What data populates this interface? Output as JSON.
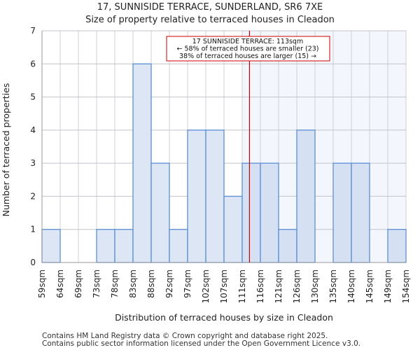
{
  "chart_data": {
    "type": "bar",
    "title": "17, SUNNISIDE TERRACE, SUNDERLAND, SR6 7XE",
    "subtitle": "Size of property relative to terraced houses in Cleadon",
    "xlabel": "Distribution of terraced houses by size in Cleadon",
    "ylabel": "Number of terraced properties",
    "bin_edges": [
      "59sqm",
      "64sqm",
      "69sqm",
      "73sqm",
      "78sqm",
      "83sqm",
      "88sqm",
      "92sqm",
      "97sqm",
      "102sqm",
      "107sqm",
      "111sqm",
      "116sqm",
      "121sqm",
      "126sqm",
      "130sqm",
      "135sqm",
      "140sqm",
      "145sqm",
      "149sqm",
      "154sqm"
    ],
    "values": [
      1,
      0,
      0,
      1,
      1,
      6,
      3,
      1,
      4,
      4,
      2,
      3,
      3,
      1,
      4,
      0,
      3,
      3,
      0,
      1
    ],
    "ylim": [
      0,
      7
    ],
    "yticks": [
      "0",
      "1",
      "2",
      "3",
      "4",
      "5",
      "6",
      "7"
    ],
    "grid": true,
    "marker": {
      "value_sqm": 113,
      "bin_fraction": 11.4,
      "color": "#cc0000"
    },
    "annotation": [
      "17 SUNNISIDE TERRACE: 113sqm",
      "← 58% of terraced houses are smaller (23)",
      "38% of terraced houses are larger (15) →"
    ],
    "colors": {
      "bar_left": "#dde6f4",
      "bar_right": "#d5e0f3",
      "edge": "#5b8fd6",
      "highlight_bg": "#f3f6fd"
    }
  },
  "footer": [
    "Contains HM Land Registry data © Crown copyright and database right 2025.",
    "Contains public sector information licensed under the Open Government Licence v3.0."
  ]
}
